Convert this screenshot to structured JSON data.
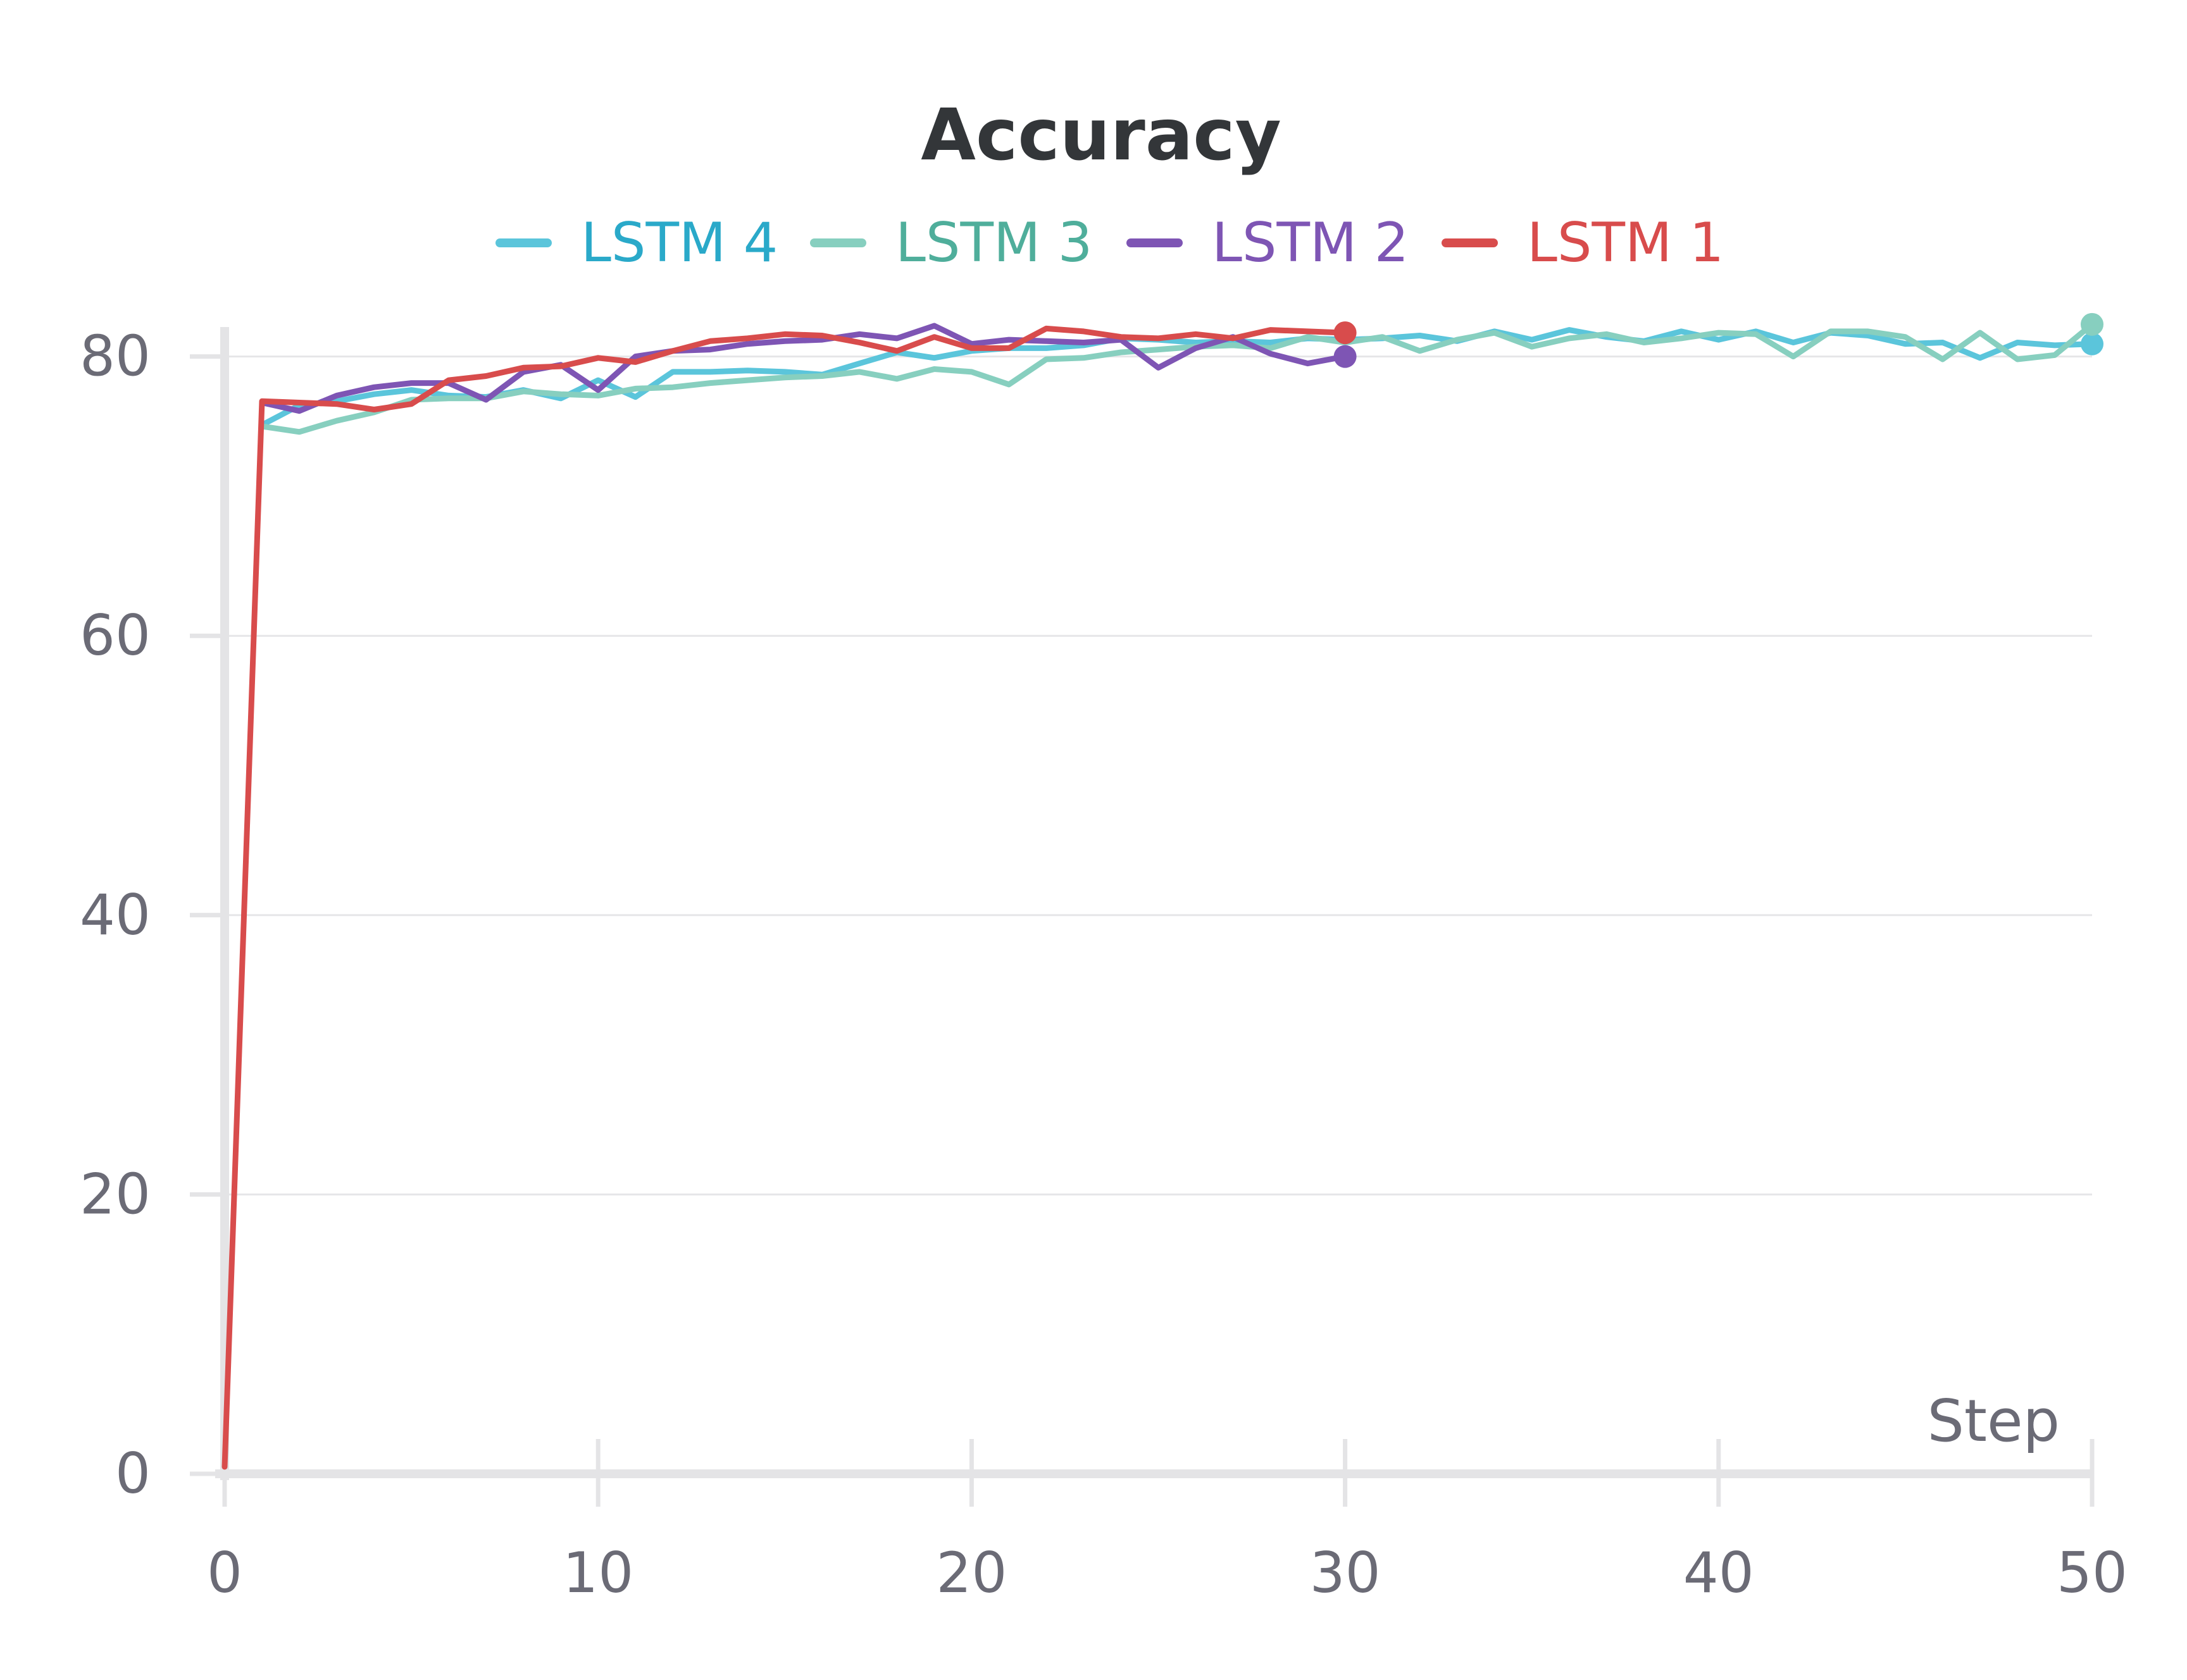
{
  "chart_data": {
    "type": "line",
    "title": "Accuracy",
    "xlabel": "Step",
    "ylabel": "",
    "xlim": [
      0,
      50
    ],
    "ylim": [
      0,
      83
    ],
    "x_ticks": [
      "0",
      "10",
      "20",
      "30",
      "40",
      "50"
    ],
    "y_ticks": [
      "0",
      "20",
      "40",
      "60",
      "80"
    ],
    "grid": "horizontal",
    "legend_position": "top-center",
    "series": [
      {
        "name": "LSTM 4",
        "color": "#5bc5db",
        "legend_text_color": "#2aa9c9",
        "x": [
          1,
          2,
          3,
          4,
          5,
          6,
          7,
          8,
          9,
          10,
          11,
          12,
          13,
          14,
          15,
          16,
          17,
          18,
          19,
          20,
          21,
          22,
          23,
          24,
          25,
          26,
          27,
          28,
          29,
          30,
          31,
          32,
          33,
          34,
          35,
          36,
          37,
          38,
          39,
          40,
          41,
          42,
          43,
          44,
          45,
          46,
          47,
          48,
          49,
          50
        ],
        "y": [
          75.1,
          76.5,
          76.8,
          77.3,
          77.6,
          77.2,
          77.1,
          77.6,
          77.0,
          78.3,
          77.1,
          78.9,
          78.9,
          79.0,
          78.9,
          78.7,
          79.5,
          80.3,
          79.9,
          80.4,
          80.6,
          80.6,
          80.8,
          81.3,
          81.2,
          81.0,
          81.1,
          81.0,
          81.3,
          81.2,
          81.3,
          81.5,
          81.1,
          81.8,
          81.2,
          81.9,
          81.4,
          81.1,
          81.8,
          81.2,
          81.8,
          81.0,
          81.7,
          81.5,
          80.9,
          81.0,
          79.9,
          81.0,
          80.8,
          80.9
        ]
      },
      {
        "name": "LSTM 3",
        "color": "#87cfbf",
        "legend_text_color": "#4fae9b",
        "x": [
          1,
          2,
          3,
          4,
          5,
          6,
          7,
          8,
          9,
          10,
          11,
          12,
          13,
          14,
          15,
          16,
          17,
          18,
          19,
          20,
          21,
          22,
          23,
          24,
          25,
          26,
          27,
          28,
          29,
          30,
          31,
          32,
          33,
          34,
          35,
          36,
          37,
          38,
          39,
          40,
          41,
          42,
          43,
          44,
          45,
          46,
          47,
          48,
          49,
          50
        ],
        "y": [
          75.0,
          74.6,
          75.4,
          76.0,
          76.9,
          77.0,
          77.0,
          77.5,
          77.3,
          77.2,
          77.7,
          77.8,
          78.1,
          78.3,
          78.5,
          78.6,
          78.9,
          78.4,
          79.1,
          78.9,
          78.0,
          79.8,
          79.9,
          80.3,
          80.5,
          80.7,
          80.8,
          80.6,
          81.4,
          81.0,
          81.4,
          80.4,
          81.2,
          81.7,
          80.7,
          81.3,
          81.6,
          81.0,
          81.3,
          81.7,
          81.6,
          80.0,
          81.8,
          81.8,
          81.4,
          79.8,
          81.7,
          79.8,
          80.1,
          82.3
        ]
      },
      {
        "name": "LSTM 2",
        "color": "#7e55b4",
        "legend_text_color": "#7e55b4",
        "x": [
          1,
          2,
          3,
          4,
          5,
          6,
          7,
          8,
          9,
          10,
          11,
          12,
          13,
          14,
          15,
          16,
          17,
          18,
          19,
          20,
          21,
          22,
          23,
          24,
          25,
          26,
          27,
          28,
          29,
          30
        ],
        "y": [
          76.7,
          76.1,
          77.2,
          77.8,
          78.1,
          78.1,
          76.9,
          78.9,
          79.4,
          77.6,
          80.0,
          80.4,
          80.5,
          80.9,
          81.1,
          81.2,
          81.6,
          81.3,
          82.2,
          80.9,
          81.2,
          81.1,
          81.0,
          81.2,
          79.2,
          80.6,
          81.4,
          80.2,
          79.5,
          80.0
        ]
      },
      {
        "name": "LSTM 1",
        "color": "#d84c4c",
        "legend_text_color": "#d84c4c",
        "x": [
          0,
          1,
          2,
          3,
          4,
          5,
          6,
          7,
          8,
          9,
          10,
          11,
          12,
          13,
          14,
          15,
          16,
          17,
          18,
          19,
          20,
          21,
          22,
          23,
          24,
          25,
          26,
          27,
          28,
          29,
          30
        ],
        "y": [
          0.5,
          76.8,
          76.7,
          76.6,
          76.2,
          76.6,
          78.3,
          78.6,
          79.2,
          79.3,
          79.9,
          79.6,
          80.4,
          81.1,
          81.3,
          81.6,
          81.5,
          81.0,
          80.4,
          81.4,
          80.6,
          80.6,
          82.0,
          81.8,
          81.4,
          81.3,
          81.6,
          81.3,
          81.9,
          81.8,
          81.7
        ]
      }
    ]
  }
}
